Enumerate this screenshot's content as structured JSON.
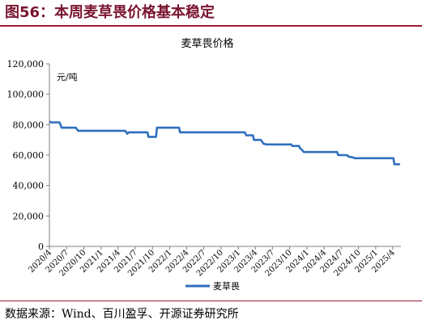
{
  "figure": {
    "title": "图56：本周麦草畏价格基本稳定",
    "source": "数据来源：Wind、百川盈孚、开源证券研究所"
  },
  "colors": {
    "series": "#2e6fbd",
    "title_text": "#7a1530",
    "rule": "#9b1b30",
    "axis": "#7f7f7f"
  },
  "chart_data": {
    "type": "line",
    "title": "麦草畏价格",
    "unit_label": "元/吨",
    "ylim": [
      0,
      120000
    ],
    "yticks": [
      0,
      20000,
      40000,
      60000,
      80000,
      100000,
      120000
    ],
    "ytick_labels": [
      "0",
      "20,000",
      "40,000",
      "60,000",
      "80,000",
      "100,000",
      "120,000"
    ],
    "xlim": [
      "2020-04-01",
      "2025-05-15"
    ],
    "xticks": [
      "2020-04-01",
      "2020-07-01",
      "2020-10-01",
      "2021-01-01",
      "2021-04-01",
      "2021-07-01",
      "2021-10-01",
      "2022-01-01",
      "2022-04-01",
      "2022-07-01",
      "2022-10-01",
      "2023-01-01",
      "2023-04-01",
      "2023-07-01",
      "2023-10-01",
      "2024-01-01",
      "2024-04-01",
      "2024-07-01",
      "2024-10-01",
      "2025-01-01",
      "2025-04-01"
    ],
    "xtick_labels": [
      "2020/4",
      "2020/7",
      "2020/10",
      "2021/1",
      "2021/4",
      "2021/7",
      "2021/10",
      "2022/1",
      "2022/4",
      "2022/7",
      "2022/10",
      "2023/1",
      "2023/4",
      "2023/7",
      "2023/10",
      "2024/1",
      "2024/4",
      "2024/7",
      "2024/10",
      "2025/1",
      "2025/4"
    ],
    "grid": false,
    "legend_position": "bottom-center",
    "series": [
      {
        "name": "麦草畏",
        "points": [
          [
            "2020-04-01",
            82000
          ],
          [
            "2020-04-10",
            81500
          ],
          [
            "2020-05-25",
            81500
          ],
          [
            "2020-06-05",
            78000
          ],
          [
            "2020-08-20",
            78000
          ],
          [
            "2020-09-01",
            76000
          ],
          [
            "2021-05-10",
            76000
          ],
          [
            "2021-05-20",
            74000
          ],
          [
            "2021-05-28",
            75000
          ],
          [
            "2021-09-05",
            75000
          ],
          [
            "2021-09-10",
            72000
          ],
          [
            "2021-10-20",
            72000
          ],
          [
            "2021-10-25",
            78000
          ],
          [
            "2022-02-20",
            78000
          ],
          [
            "2022-02-25",
            75000
          ],
          [
            "2023-02-05",
            75000
          ],
          [
            "2023-02-12",
            73000
          ],
          [
            "2023-03-20",
            73000
          ],
          [
            "2023-03-25",
            70000
          ],
          [
            "2023-05-01",
            70000
          ],
          [
            "2023-05-15",
            67500
          ],
          [
            "2023-06-01",
            67000
          ],
          [
            "2023-10-10",
            67000
          ],
          [
            "2023-10-15",
            66000
          ],
          [
            "2023-11-20",
            66000
          ],
          [
            "2023-11-25",
            64500
          ],
          [
            "2023-12-05",
            63500
          ],
          [
            "2023-12-15",
            62000
          ],
          [
            "2024-06-10",
            62000
          ],
          [
            "2024-06-15",
            60000
          ],
          [
            "2024-08-01",
            60000
          ],
          [
            "2024-08-10",
            59000
          ],
          [
            "2024-09-01",
            58500
          ],
          [
            "2024-09-10",
            58000
          ],
          [
            "2025-04-05",
            58000
          ],
          [
            "2025-04-10",
            54000
          ],
          [
            "2025-05-10",
            54000
          ]
        ]
      }
    ]
  }
}
